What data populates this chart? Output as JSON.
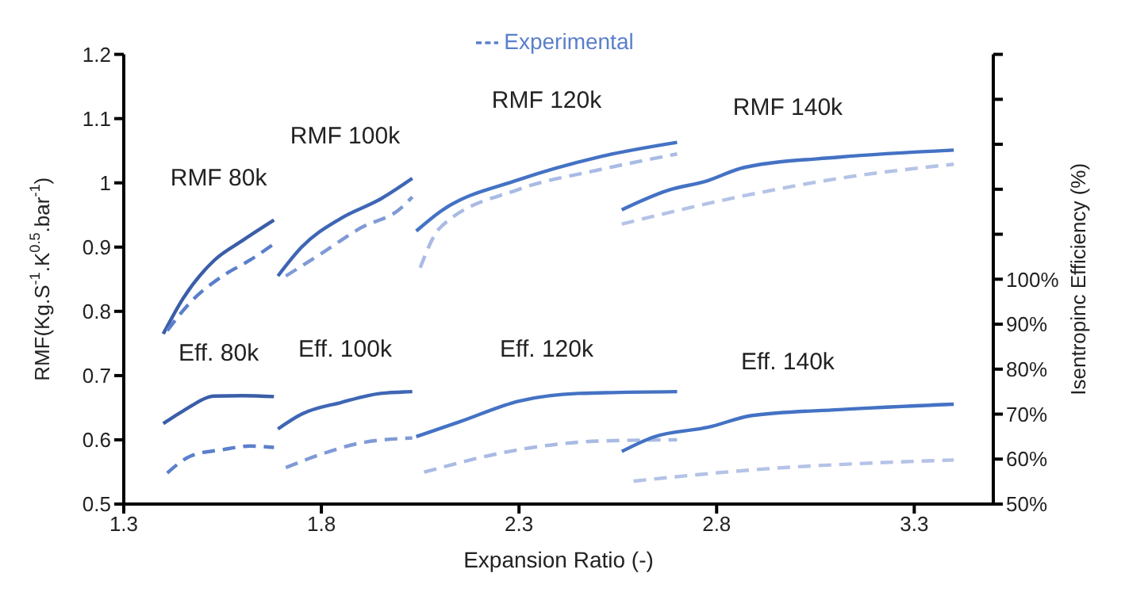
{
  "chart_data": {
    "type": "line",
    "xlabel": "Expansion Ratio (-)",
    "ylabel": "RMF(Kg.S$^{-1}$.K$^{0.5}$.bar$^{-1}$)",
    "y2label": "Isentropinc Efficiency (%)",
    "xlim": [
      1.3,
      3.5
    ],
    "xticks": [
      1.3,
      1.8,
      2.3,
      2.8,
      3.3
    ],
    "ylim": [
      0.5,
      1.2
    ],
    "yticks": [
      0.5,
      0.6,
      0.7,
      0.8,
      0.9,
      1,
      1.1,
      1.2
    ],
    "y2lim": [
      50,
      150
    ],
    "y2ticks": [
      {
        "value": 50,
        "label": "50%"
      },
      {
        "value": 60,
        "label": "60%"
      },
      {
        "value": 70,
        "label": "70%"
      },
      {
        "value": 80,
        "label": "80%"
      },
      {
        "value": 90,
        "label": "90%"
      },
      {
        "value": 100,
        "label": "100%"
      },
      {
        "value": 110,
        "label": null
      },
      {
        "value": 120,
        "label": null
      },
      {
        "value": 130,
        "label": null
      },
      {
        "value": 140,
        "label": null
      },
      {
        "value": 150,
        "label": null
      }
    ],
    "marker": "none",
    "legend": "top",
    "series": [
      {
        "color": "#3a5ea8",
        "line_style": "solid",
        "x": [
          1.4,
          1.45,
          1.53,
          1.6,
          1.68
        ],
        "values": [
          0.765,
          0.82,
          0.88,
          0.91,
          0.942
        ]
      },
      {
        "name": "Experimental",
        "color": "#5b7fcc",
        "line_style": "dashed",
        "x": [
          1.41,
          1.47,
          1.55,
          1.62,
          1.68
        ],
        "values": [
          0.77,
          0.815,
          0.855,
          0.88,
          0.905
        ]
      },
      {
        "color": "#3f66b5",
        "line_style": "solid",
        "x": [
          1.69,
          1.75,
          1.85,
          1.95,
          2.03
        ],
        "values": [
          0.855,
          0.9,
          0.945,
          0.975,
          1.007
        ]
      },
      {
        "color": "#7f9ad6",
        "line_style": "dashed",
        "x": [
          1.71,
          1.8,
          1.9,
          2.0,
          2.03
        ],
        "values": [
          0.855,
          0.89,
          0.93,
          0.96,
          0.978
        ]
      },
      {
        "color": "#4472c4",
        "line_style": "solid",
        "x": [
          2.04,
          2.1,
          2.3,
          2.5,
          2.7
        ],
        "values": [
          0.925,
          0.955,
          1.005,
          1.04,
          1.063
        ]
      },
      {
        "color": "#a9bbe4",
        "line_style": "dashed",
        "x": [
          2.05,
          2.1,
          2.3,
          2.5,
          2.7
        ],
        "values": [
          0.868,
          0.93,
          0.99,
          1.02,
          1.045
        ]
      },
      {
        "color": "#4472c4",
        "line_style": "solid",
        "x": [
          2.56,
          2.68,
          2.77,
          2.87,
          3.11,
          3.4
        ],
        "values": [
          0.958,
          0.989,
          1.002,
          1.024,
          1.04,
          1.051
        ]
      },
      {
        "color": "#b4c3e6",
        "line_style": "dashed",
        "x": [
          2.56,
          2.87,
          3.11,
          3.4
        ],
        "values": [
          0.936,
          0.98,
          1.007,
          1.029
        ]
      },
      {
        "color": "#3a5ea8",
        "line_style": "solid",
        "axis": "y2",
        "x": [
          1.4,
          1.45,
          1.53,
          1.6,
          1.68
        ],
        "values": [
          67.9,
          70.7,
          74.0,
          74.1,
          73.9
        ]
      },
      {
        "color": "#5b7fcc",
        "line_style": "dashed",
        "axis": "y2",
        "x": [
          1.41,
          1.47,
          1.55,
          1.62,
          1.68
        ],
        "values": [
          56.9,
          60.7,
          62.1,
          62.9,
          62.6
        ]
      },
      {
        "color": "#3f66b5",
        "line_style": "solid",
        "axis": "y2",
        "x": [
          1.69,
          1.75,
          1.85,
          1.95,
          2.03
        ],
        "values": [
          66.7,
          70,
          72.6,
          74.6,
          75
        ]
      },
      {
        "color": "#7f9ad6",
        "line_style": "dashed",
        "axis": "y2",
        "x": [
          1.71,
          1.8,
          1.9,
          2.03
        ],
        "values": [
          58.1,
          61.1,
          63.6,
          64.7
        ]
      },
      {
        "color": "#4472c4",
        "line_style": "solid",
        "axis": "y2",
        "x": [
          2.04,
          2.15,
          2.3,
          2.45,
          2.7
        ],
        "values": [
          65,
          68.3,
          72.9,
          74.6,
          75
        ]
      },
      {
        "color": "#a9bbe4",
        "line_style": "dashed",
        "axis": "y2",
        "x": [
          2.06,
          2.3,
          2.5,
          2.7
        ],
        "values": [
          57.1,
          62.1,
          64,
          64.3
        ]
      },
      {
        "color": "#4472c4",
        "line_style": "solid",
        "axis": "y2",
        "x": [
          2.56,
          2.64,
          2.78,
          2.89,
          3.11,
          3.4
        ],
        "values": [
          61.7,
          64.9,
          67.1,
          69.7,
          71,
          72.2
        ]
      },
      {
        "color": "#b4c3e6",
        "line_style": "dashed",
        "axis": "y2",
        "x": [
          2.59,
          2.89,
          3.4
        ],
        "values": [
          55.1,
          57.6,
          59.8
        ]
      }
    ],
    "annotations": [
      "RMF 80k",
      "RMF 100k",
      "RMF 120k",
      "RMF 140k",
      "Eff. 80k",
      "Eff. 100k",
      "Eff. 120k",
      "Eff. 140k"
    ]
  }
}
